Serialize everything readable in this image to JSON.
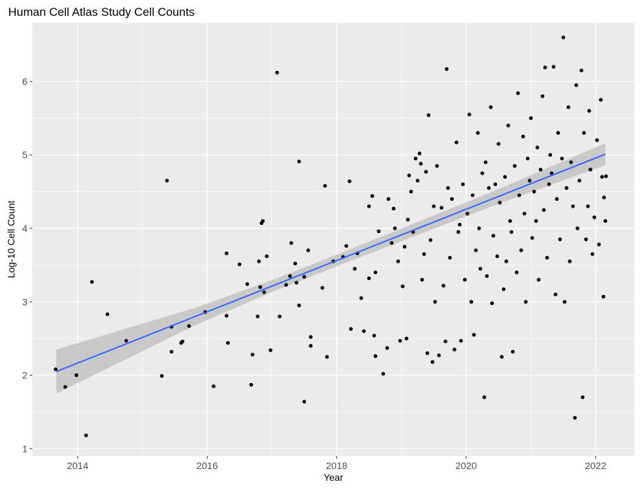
{
  "chart_data": {
    "type": "scatter",
    "title": "Human Cell Atlas Study Cell Counts",
    "xlabel": "Year",
    "ylabel": "Log-10 Cell Count",
    "xlim": [
      2013.3,
      2022.6
    ],
    "ylim": [
      0.9,
      6.8
    ],
    "x_ticks": [
      2014,
      2016,
      2018,
      2020,
      2022
    ],
    "x_tick_labels": [
      "2014",
      "2016",
      "2018",
      "2020",
      "2022"
    ],
    "y_ticks": [
      1,
      2,
      3,
      4,
      5,
      6
    ],
    "y_tick_labels": [
      "1",
      "2",
      "3",
      "4",
      "5",
      "6"
    ],
    "grid": true,
    "legend": "none",
    "colors": {
      "panel_background": "#ebebeb",
      "grid_major": "#ffffff",
      "points": "#000000",
      "trend_line": "#3366ff",
      "confidence_band": "#bdbdbd"
    },
    "trend": {
      "method": "linear fit",
      "line": [
        [
          2013.67,
          2.05
        ],
        [
          2022.15,
          5.01
        ]
      ],
      "band_halfwidth": [
        [
          2013.67,
          0.3
        ],
        [
          2015.8,
          0.12
        ],
        [
          2017.0,
          0.08
        ],
        [
          2018.0,
          0.08
        ],
        [
          2019.5,
          0.09
        ],
        [
          2020.5,
          0.1
        ],
        [
          2022.15,
          0.15
        ]
      ]
    },
    "points": [
      [
        2013.66,
        2.08
      ],
      [
        2013.81,
        1.84
      ],
      [
        2013.98,
        2.0
      ],
      [
        2014.13,
        1.18
      ],
      [
        2014.22,
        3.27
      ],
      [
        2014.46,
        2.83
      ],
      [
        2014.75,
        2.47
      ],
      [
        2015.3,
        1.99
      ],
      [
        2015.38,
        4.65
      ],
      [
        2015.45,
        2.32
      ],
      [
        2015.45,
        2.66
      ],
      [
        2015.6,
        2.44
      ],
      [
        2015.62,
        2.46
      ],
      [
        2015.72,
        2.67
      ],
      [
        2015.97,
        2.86
      ],
      [
        2016.1,
        1.85
      ],
      [
        2016.3,
        3.66
      ],
      [
        2016.3,
        2.81
      ],
      [
        2016.32,
        2.44
      ],
      [
        2016.5,
        3.51
      ],
      [
        2016.62,
        3.24
      ],
      [
        2016.68,
        1.87
      ],
      [
        2016.7,
        2.28
      ],
      [
        2016.78,
        2.8
      ],
      [
        2016.8,
        3.55
      ],
      [
        2016.82,
        3.2
      ],
      [
        2016.84,
        4.07
      ],
      [
        2016.86,
        4.1
      ],
      [
        2016.88,
        3.13
      ],
      [
        2016.92,
        3.62
      ],
      [
        2016.98,
        2.34
      ],
      [
        2017.08,
        6.12
      ],
      [
        2017.12,
        2.8
      ],
      [
        2017.22,
        3.23
      ],
      [
        2017.28,
        3.35
      ],
      [
        2017.3,
        3.8
      ],
      [
        2017.36,
        3.52
      ],
      [
        2017.38,
        3.26
      ],
      [
        2017.42,
        4.91
      ],
      [
        2017.42,
        2.95
      ],
      [
        2017.5,
        1.64
      ],
      [
        2017.5,
        3.34
      ],
      [
        2017.56,
        3.7
      ],
      [
        2017.6,
        2.52
      ],
      [
        2017.6,
        2.4
      ],
      [
        2017.78,
        3.19
      ],
      [
        2017.82,
        4.58
      ],
      [
        2017.85,
        2.25
      ],
      [
        2017.95,
        3.55
      ],
      [
        2018.1,
        3.61
      ],
      [
        2018.15,
        3.76
      ],
      [
        2018.2,
        4.64
      ],
      [
        2018.22,
        2.63
      ],
      [
        2018.28,
        3.45
      ],
      [
        2018.32,
        3.66
      ],
      [
        2018.38,
        3.05
      ],
      [
        2018.42,
        2.6
      ],
      [
        2018.5,
        4.3
      ],
      [
        2018.5,
        3.32
      ],
      [
        2018.55,
        4.44
      ],
      [
        2018.58,
        2.54
      ],
      [
        2018.6,
        3.4
      ],
      [
        2018.6,
        2.26
      ],
      [
        2018.65,
        3.96
      ],
      [
        2018.72,
        2.02
      ],
      [
        2018.78,
        2.37
      ],
      [
        2018.8,
        4.4
      ],
      [
        2018.85,
        3.8
      ],
      [
        2018.88,
        4.27
      ],
      [
        2018.9,
        4.0
      ],
      [
        2018.95,
        3.55
      ],
      [
        2018.98,
        2.47
      ],
      [
        2019.02,
        3.21
      ],
      [
        2019.05,
        3.75
      ],
      [
        2019.08,
        2.5
      ],
      [
        2019.1,
        4.12
      ],
      [
        2019.12,
        4.72
      ],
      [
        2019.15,
        4.5
      ],
      [
        2019.18,
        3.95
      ],
      [
        2019.22,
        4.95
      ],
      [
        2019.25,
        4.65
      ],
      [
        2019.28,
        5.02
      ],
      [
        2019.3,
        4.88
      ],
      [
        2019.32,
        3.3
      ],
      [
        2019.35,
        3.65
      ],
      [
        2019.38,
        4.77
      ],
      [
        2019.4,
        2.3
      ],
      [
        2019.42,
        5.54
      ],
      [
        2019.45,
        3.84
      ],
      [
        2019.48,
        2.18
      ],
      [
        2019.5,
        4.3
      ],
      [
        2019.52,
        3.0
      ],
      [
        2019.55,
        4.85
      ],
      [
        2019.58,
        2.27
      ],
      [
        2019.62,
        4.28
      ],
      [
        2019.65,
        3.22
      ],
      [
        2019.68,
        2.46
      ],
      [
        2019.7,
        6.17
      ],
      [
        2019.72,
        4.55
      ],
      [
        2019.75,
        3.6
      ],
      [
        2019.78,
        4.4
      ],
      [
        2019.82,
        2.35
      ],
      [
        2019.85,
        5.17
      ],
      [
        2019.88,
        3.95
      ],
      [
        2019.9,
        4.05
      ],
      [
        2019.92,
        2.47
      ],
      [
        2019.95,
        4.6
      ],
      [
        2019.98,
        3.3
      ],
      [
        2020.02,
        4.2
      ],
      [
        2020.05,
        5.55
      ],
      [
        2020.08,
        3.0
      ],
      [
        2020.1,
        4.45
      ],
      [
        2020.12,
        2.55
      ],
      [
        2020.15,
        3.7
      ],
      [
        2020.18,
        5.3
      ],
      [
        2020.2,
        4.0
      ],
      [
        2020.22,
        3.45
      ],
      [
        2020.25,
        4.75
      ],
      [
        2020.28,
        1.7
      ],
      [
        2020.3,
        4.9
      ],
      [
        2020.32,
        3.35
      ],
      [
        2020.35,
        4.55
      ],
      [
        2020.38,
        5.65
      ],
      [
        2020.4,
        2.98
      ],
      [
        2020.42,
        3.9
      ],
      [
        2020.45,
        4.6
      ],
      [
        2020.48,
        3.62
      ],
      [
        2020.5,
        5.15
      ],
      [
        2020.52,
        4.35
      ],
      [
        2020.55,
        2.25
      ],
      [
        2020.58,
        3.17
      ],
      [
        2020.6,
        4.7
      ],
      [
        2020.62,
        3.55
      ],
      [
        2020.65,
        5.4
      ],
      [
        2020.68,
        4.1
      ],
      [
        2020.7,
        3.95
      ],
      [
        2020.72,
        2.32
      ],
      [
        2020.75,
        4.85
      ],
      [
        2020.78,
        3.4
      ],
      [
        2020.8,
        5.84
      ],
      [
        2020.82,
        4.45
      ],
      [
        2020.85,
        3.7
      ],
      [
        2020.88,
        5.25
      ],
      [
        2020.9,
        4.2
      ],
      [
        2020.92,
        3.0
      ],
      [
        2020.95,
        4.95
      ],
      [
        2020.98,
        4.65
      ],
      [
        2021.0,
        5.5
      ],
      [
        2021.02,
        3.87
      ],
      [
        2021.05,
        4.5
      ],
      [
        2021.08,
        4.1
      ],
      [
        2021.1,
        5.1
      ],
      [
        2021.12,
        3.3
      ],
      [
        2021.15,
        4.8
      ],
      [
        2021.18,
        5.8
      ],
      [
        2021.2,
        4.25
      ],
      [
        2021.22,
        6.19
      ],
      [
        2021.25,
        3.6
      ],
      [
        2021.28,
        4.6
      ],
      [
        2021.3,
        5.0
      ],
      [
        2021.32,
        4.75
      ],
      [
        2021.35,
        6.2
      ],
      [
        2021.38,
        3.1
      ],
      [
        2021.4,
        4.4
      ],
      [
        2021.42,
        5.3
      ],
      [
        2021.45,
        3.85
      ],
      [
        2021.48,
        4.95
      ],
      [
        2021.5,
        6.6
      ],
      [
        2021.52,
        3.0
      ],
      [
        2021.55,
        4.55
      ],
      [
        2021.58,
        5.65
      ],
      [
        2021.6,
        3.55
      ],
      [
        2021.62,
        4.9
      ],
      [
        2021.65,
        4.3
      ],
      [
        2021.68,
        1.42
      ],
      [
        2021.7,
        5.95
      ],
      [
        2021.72,
        4.0
      ],
      [
        2021.75,
        4.65
      ],
      [
        2021.78,
        6.15
      ],
      [
        2021.8,
        1.7
      ],
      [
        2021.82,
        5.3
      ],
      [
        2021.85,
        3.85
      ],
      [
        2021.88,
        4.3
      ],
      [
        2021.9,
        5.6
      ],
      [
        2021.92,
        4.8
      ],
      [
        2021.95,
        3.65
      ],
      [
        2021.98,
        4.15
      ],
      [
        2022.02,
        5.2
      ],
      [
        2022.05,
        3.78
      ],
      [
        2022.08,
        5.75
      ],
      [
        2022.1,
        4.7
      ],
      [
        2022.12,
        3.07
      ],
      [
        2022.13,
        4.42
      ],
      [
        2022.15,
        4.1
      ],
      [
        2022.16,
        4.71
      ]
    ]
  }
}
